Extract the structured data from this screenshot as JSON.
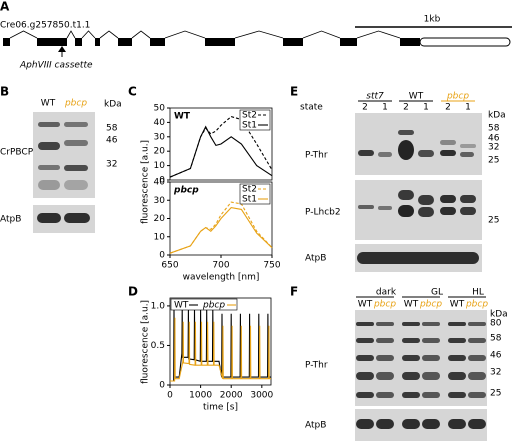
{
  "panel_a": {
    "letter": "A",
    "gene": "Cre06.g257850.t1.1",
    "scale_label": "1kb",
    "cassette_label": "AphVIII cassette"
  },
  "panel_b": {
    "letter": "B",
    "lanes": [
      "WT",
      "pbcp"
    ],
    "unit": "kDa",
    "markers": [
      58,
      46,
      32
    ],
    "blot_labels": [
      "CrPBCP",
      "AtpB"
    ]
  },
  "panel_c": {
    "letter": "C"
  },
  "panel_d": {
    "letter": "D"
  },
  "chart_data": [
    {
      "type": "line",
      "label": "WT",
      "label_color": "#000000",
      "ylabel": "fluorescence [a.u.]",
      "x": [
        650,
        670,
        680,
        685,
        690,
        695,
        700,
        710,
        720,
        735,
        750
      ],
      "series": [
        {
          "name": "St2",
          "color": "#000000",
          "dashed": true,
          "values": [
            2,
            8,
            30,
            36,
            32,
            34,
            38,
            44,
            42,
            25,
            7
          ]
        },
        {
          "name": "St1",
          "color": "#000000",
          "dashed": false,
          "values": [
            2,
            8,
            30,
            37,
            30,
            24,
            25,
            30,
            25,
            10,
            3
          ]
        }
      ],
      "xlim": [
        650,
        750
      ],
      "ylim": [
        0,
        50
      ],
      "yticks": [
        0,
        10,
        20,
        30,
        40,
        50
      ]
    },
    {
      "type": "line",
      "label": "pbcp",
      "label_color": "#e8a317",
      "xlabel": "wavelength [nm]",
      "x": [
        650,
        670,
        680,
        685,
        690,
        695,
        700,
        710,
        720,
        735,
        750
      ],
      "series": [
        {
          "name": "St2",
          "color": "#e8a317",
          "dashed": true,
          "values": [
            1,
            5,
            13,
            15,
            14,
            17,
            22,
            29,
            28,
            13,
            4
          ]
        },
        {
          "name": "St1",
          "color": "#e8a317",
          "dashed": false,
          "values": [
            1,
            5,
            13,
            15,
            13,
            16,
            20,
            26,
            25,
            12,
            4
          ]
        }
      ],
      "xlim": [
        650,
        750
      ],
      "xticks": [
        650,
        700,
        750
      ],
      "ylim": [
        0,
        40
      ],
      "yticks": [
        0,
        10,
        20,
        30,
        40
      ]
    },
    {
      "type": "line",
      "xlabel": "time [s]",
      "ylabel": "fluorescence [a.u.]",
      "series": [
        {
          "name": "WT",
          "color": "#000000",
          "x": [
            0,
            120,
            130,
            140,
            300,
            390,
            400,
            410,
            590,
            600,
            610,
            790,
            800,
            810,
            990,
            1000,
            1010,
            1190,
            1200,
            1210,
            1390,
            1400,
            1410,
            1600,
            1690,
            1700,
            1710,
            1990,
            2000,
            2010,
            2290,
            2300,
            2310,
            2590,
            2600,
            2610,
            2890,
            2900,
            2910,
            3190,
            3200,
            3210,
            3300
          ],
          "values": [
            0.05,
            0.05,
            1.0,
            0.1,
            0.1,
            0.4,
            0.95,
            0.35,
            0.35,
            0.95,
            0.33,
            0.32,
            0.95,
            0.32,
            0.3,
            0.95,
            0.3,
            0.3,
            0.95,
            0.3,
            0.3,
            0.95,
            0.3,
            0.3,
            0.1,
            0.9,
            0.1,
            0.1,
            0.9,
            0.1,
            0.1,
            0.9,
            0.1,
            0.1,
            0.9,
            0.1,
            0.1,
            0.9,
            0.1,
            0.1,
            0.9,
            0.1,
            0.1
          ]
        },
        {
          "name": "pbcp",
          "color": "#e8a317",
          "x": [
            0,
            150,
            160,
            170,
            300,
            420,
            430,
            440,
            620,
            630,
            640,
            820,
            830,
            840,
            1020,
            1030,
            1040,
            1220,
            1230,
            1240,
            1420,
            1430,
            1440,
            1600,
            1720,
            1730,
            1740,
            2020,
            2030,
            2040,
            2320,
            2330,
            2340,
            2620,
            2630,
            2640,
            2920,
            2930,
            2940,
            3220,
            3230,
            3240,
            3300
          ],
          "values": [
            0.05,
            0.05,
            0.85,
            0.08,
            0.08,
            0.3,
            0.8,
            0.28,
            0.27,
            0.8,
            0.26,
            0.25,
            0.8,
            0.25,
            0.25,
            0.8,
            0.25,
            0.25,
            0.8,
            0.25,
            0.25,
            0.8,
            0.25,
            0.25,
            0.08,
            0.75,
            0.08,
            0.08,
            0.75,
            0.08,
            0.08,
            0.75,
            0.08,
            0.08,
            0.75,
            0.08,
            0.08,
            0.75,
            0.08,
            0.08,
            0.75,
            0.08,
            0.08
          ]
        }
      ],
      "xlim": [
        0,
        3300
      ],
      "xticks": [
        0,
        1000,
        2000,
        3000
      ],
      "ylim": [
        0,
        1.1
      ],
      "yticks": [
        0,
        0.5,
        {
          "value": 1,
          "label": "1.0"
        }
      ]
    }
  ],
  "panel_e": {
    "letter": "E",
    "groups": [
      "stt7",
      "WT",
      "pbcp"
    ],
    "state_label": "state",
    "states": [
      2,
      1,
      2,
      1,
      2,
      1
    ],
    "unit": "kDa",
    "blot_labels": [
      "P-Thr",
      "P-Lhcb2",
      "AtpB"
    ],
    "markers_1": [
      58,
      46,
      32,
      25
    ],
    "markers_2": [
      25
    ]
  },
  "panel_f": {
    "letter": "F",
    "groups": [
      "dark",
      "GL",
      "HL"
    ],
    "lanes": [
      "WT",
      "pbcp",
      "WT",
      "pbcp",
      "WT",
      "pbcp"
    ],
    "unit": "kDa",
    "markers": [
      80,
      58,
      46,
      32,
      25
    ],
    "blot_labels": [
      "P-Thr",
      "AtpB"
    ]
  }
}
